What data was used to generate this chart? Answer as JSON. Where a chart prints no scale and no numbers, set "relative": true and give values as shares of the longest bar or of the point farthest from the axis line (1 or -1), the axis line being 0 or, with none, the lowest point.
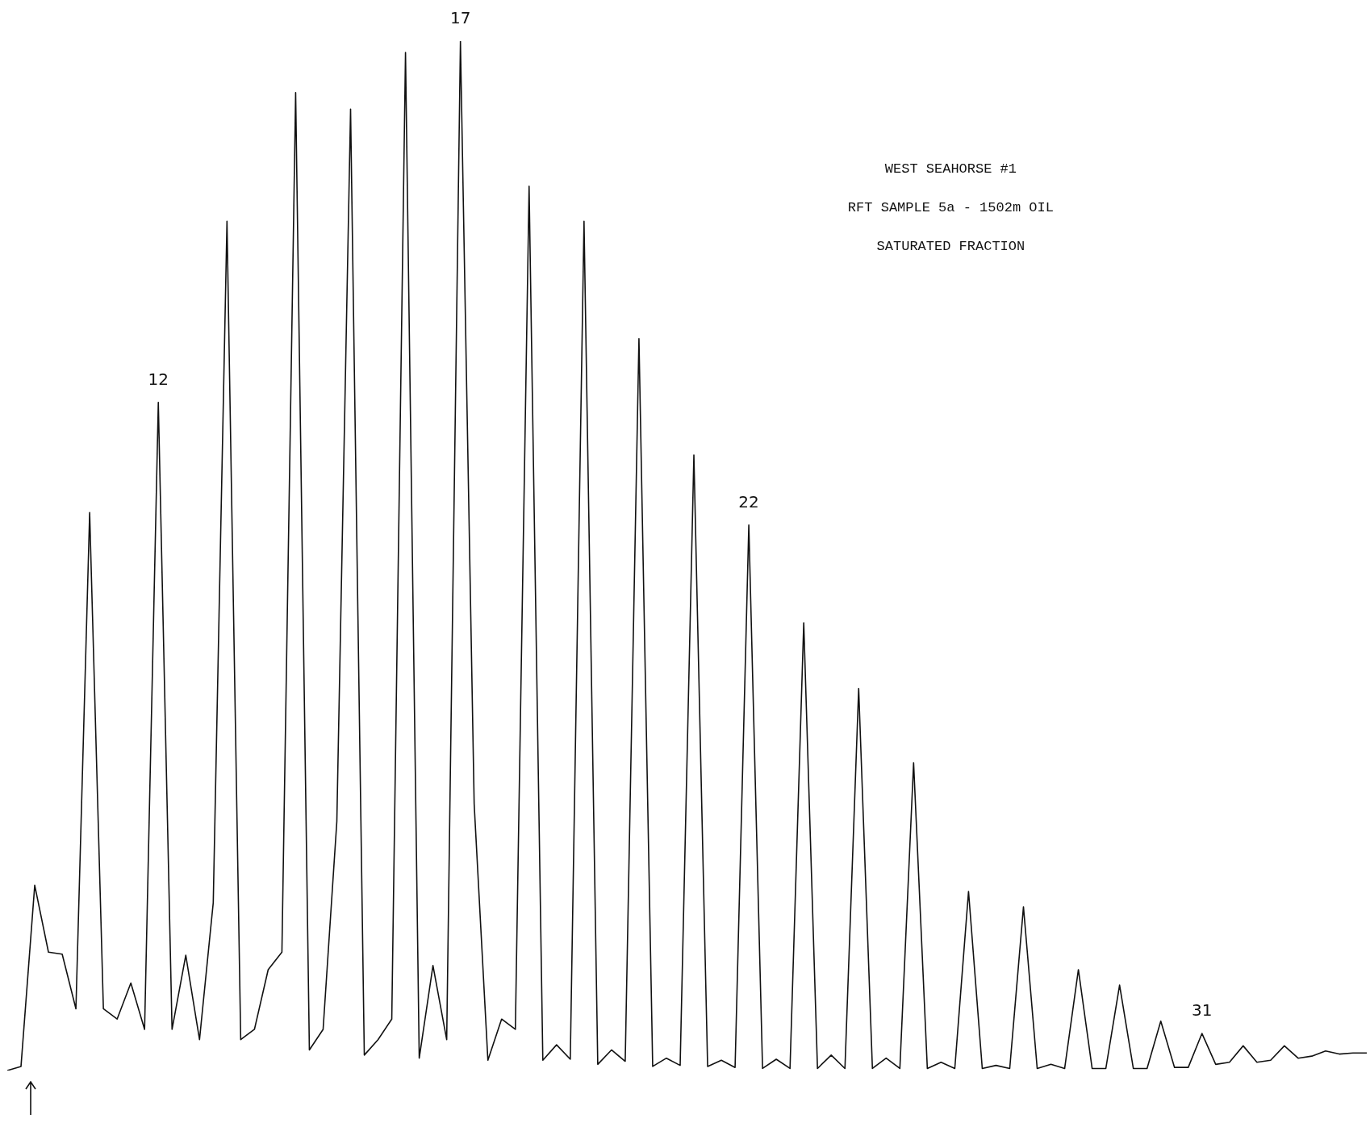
{
  "chart_data": {
    "type": "line",
    "relative": true,
    "title": "WEST SEAHORSE #1",
    "subtitle": "RFT SAMPLE 5a - 1502m OIL",
    "categories": [
      null,
      null,
      null,
      null,
      null,
      null,
      null,
      null,
      null,
      null,
      null,
      null,
      null,
      null,
      null,
      null,
      null,
      null,
      null,
      null,
      null,
      null,
      null,
      null,
      null,
      null,
      null,
      null,
      null,
      null,
      null,
      null,
      null,
      null,
      null,
      null,
      null,
      null,
      null,
      null,
      null,
      null,
      null,
      null,
      null,
      null,
      null,
      null,
      null,
      null,
      null,
      null,
      null,
      null,
      null,
      null,
      null,
      null,
      null,
      null,
      null,
      null,
      null,
      null,
      null,
      null,
      null,
      null,
      null,
      null,
      null,
      null,
      null,
      null,
      null,
      null,
      null,
      null,
      null,
      null,
      null,
      null,
      null,
      null,
      null,
      null,
      null,
      null,
      null,
      null,
      null,
      null,
      null,
      null,
      null,
      null,
      null,
      null,
      null,
      null
    ],
    "series": [
      {
        "color": "#111111",
        "values": [
          0,
          0.004,
          0.18,
          0.115,
          0.113,
          0.06,
          0.542,
          0.06,
          0.05,
          0.085,
          0.04,
          0.649,
          0.04,
          0.112,
          0.03,
          0.163,
          0.825,
          0.03,
          0.04,
          0.098,
          0.115,
          0.95,
          0.02,
          0.04,
          0.242,
          0.934,
          0.015,
          0.03,
          0.05,
          0.989,
          0.012,
          0.102,
          0.03,
          1.0,
          0.259,
          0.01,
          0.05,
          0.04,
          0.859,
          0.01,
          0.025,
          0.011,
          0.825,
          0.006,
          0.02,
          0.009,
          0.711,
          0.004,
          0.012,
          0.005,
          0.598,
          0.004,
          0.01,
          0.003,
          0.53,
          0.002,
          0.011,
          0.002,
          0.435,
          0.002,
          0.015,
          0.002,
          0.371,
          0.002,
          0.012,
          0.002,
          0.299,
          0.002,
          0.008,
          0.002,
          0.174,
          0.002,
          0.005,
          0.002,
          0.159,
          0.002,
          0.006,
          0.002,
          0.098,
          0.002,
          0.002,
          0.083,
          0.002,
          0.002,
          0.048,
          0.003,
          0.003,
          0.036,
          0.006,
          0.008,
          0.024,
          0.008,
          0.01,
          0.024,
          0.012,
          0.014,
          0.019,
          0.016,
          0.017,
          0.017
        ]
      }
    ],
    "annotations": [
      "SATURATED FRACTION",
      {
        "text": "12",
        "y": 0.649
      },
      {
        "text": "17",
        "y": 1.0
      },
      {
        "text": "22",
        "y": 0.53
      },
      {
        "text": "31",
        "y": 0.036
      }
    ],
    "legend": false,
    "marker": "none",
    "line_style": "solid"
  }
}
